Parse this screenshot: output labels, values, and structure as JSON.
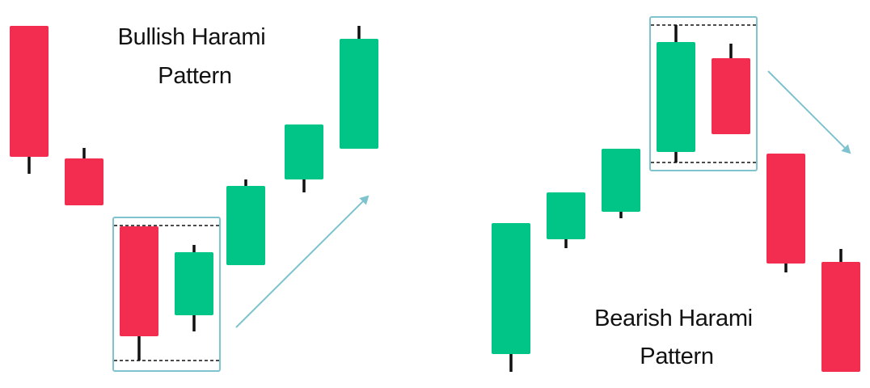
{
  "colors": {
    "bullish": "#00C587",
    "bearish": "#F22D50",
    "wick": "#111111",
    "highlight": "#7FC3CF",
    "arrow": "#7FC3CF"
  },
  "bullish_pattern": {
    "title_line1": "Bullish Harami",
    "title_line2": "Pattern",
    "candles": [
      {
        "type": "bearish"
      },
      {
        "type": "bearish"
      },
      {
        "type": "bearish",
        "highlighted": true
      },
      {
        "type": "bullish",
        "highlighted": true
      },
      {
        "type": "bullish"
      },
      {
        "type": "bullish"
      },
      {
        "type": "bullish"
      }
    ],
    "trend_after": "up-arrow-icon"
  },
  "bearish_pattern": {
    "title_line1": "Bearish Harami",
    "title_line2": "Pattern",
    "candles": [
      {
        "type": "bullish"
      },
      {
        "type": "bullish"
      },
      {
        "type": "bullish"
      },
      {
        "type": "bullish",
        "highlighted": true
      },
      {
        "type": "bearish",
        "highlighted": true
      },
      {
        "type": "bearish"
      },
      {
        "type": "bearish"
      }
    ],
    "trend_after": "down-arrow-icon"
  }
}
